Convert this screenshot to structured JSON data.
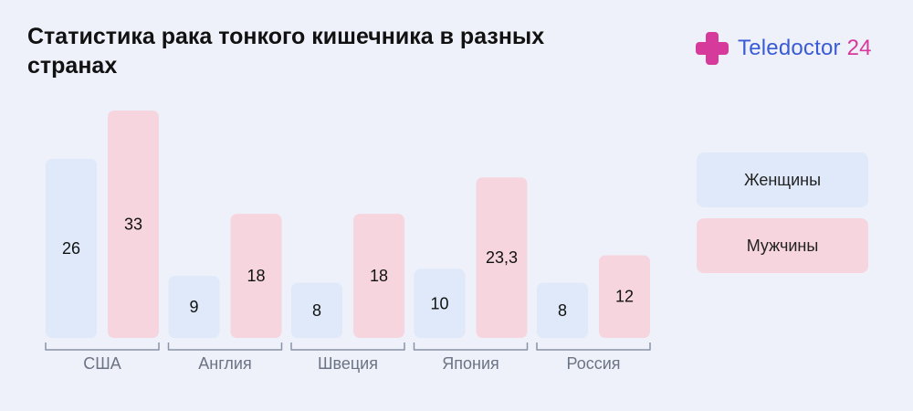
{
  "title": "Статистика рака тонкого кишечника в разных странах",
  "logo": {
    "brand": "Teledoctor",
    "number": "24",
    "icon": "medical-cross-icon"
  },
  "colors": {
    "background": "#eef1f9",
    "women": "#dfe9f9",
    "men": "#f6d5de",
    "logo_blue": "#3b5bd6",
    "logo_magenta": "#d63a9b",
    "axis": "#8a93a6"
  },
  "chart_data": {
    "type": "bar",
    "categories": [
      "США",
      "Англия",
      "Швеция",
      "Япония",
      "Россия"
    ],
    "series": [
      {
        "name": "Женщины",
        "values": [
          26,
          9,
          8,
          10,
          8
        ],
        "labels": [
          "26",
          "9",
          "8",
          "10",
          "8"
        ],
        "color": "#dfe9f9"
      },
      {
        "name": "Мужчины",
        "values": [
          33,
          18,
          18,
          23.3,
          12
        ],
        "labels": [
          "33",
          "18",
          "18",
          "23,3",
          "12"
        ],
        "color": "#f6d5de"
      }
    ],
    "title": "Статистика рака тонкого кишечника в разных странах",
    "xlabel": "",
    "ylabel": "",
    "ylim": [
      0,
      33
    ],
    "grid": false,
    "legend": "right"
  },
  "legend": {
    "women": "Женщины",
    "men": "Мужчины"
  }
}
